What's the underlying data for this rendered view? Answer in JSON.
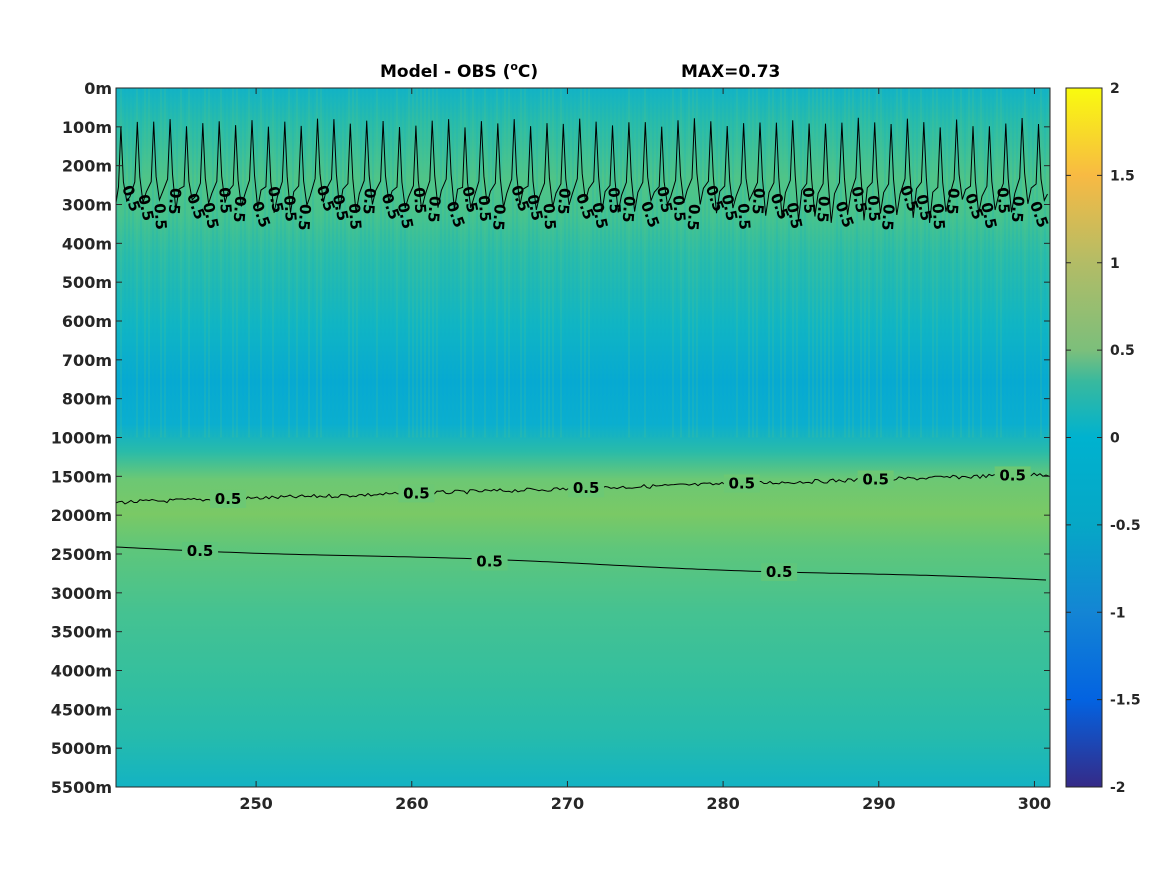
{
  "chart_data": {
    "type": "heatmap",
    "title": "Model - OBS (°C)",
    "title_parts": {
      "main": "Model - OBS (",
      "superscript": "o",
      "unit": "C)"
    },
    "max_label": "MAX=0.73",
    "x_ticks": [
      250,
      260,
      270,
      280,
      290,
      300
    ],
    "x_range": [
      241,
      301
    ],
    "depth_ticks": [
      "0m",
      "100m",
      "200m",
      "300m",
      "400m",
      "500m",
      "600m",
      "700m",
      "800m",
      "1000m",
      "1500m",
      "2000m",
      "2500m",
      "3000m",
      "3500m",
      "4000m",
      "4500m",
      "5000m",
      "5500m"
    ],
    "colorbar": {
      "range": [
        -2,
        2
      ],
      "ticks": [
        "2",
        "1.5",
        "1",
        "0.5",
        "0",
        "-0.5",
        "-1",
        "-1.5",
        "-2"
      ],
      "colormap": "parula"
    },
    "contour_level": 0.5,
    "contour_label": "0.5",
    "upper_contour_labels": [
      "0.5",
      "0.5",
      "0.5",
      "0.5",
      "0.5",
      "0.5",
      "0.5",
      "0.5",
      "0.5",
      "0.5",
      "0.5",
      "0.5",
      "0.5",
      "0.5",
      "0.5",
      "0.5",
      "0.5",
      "0.5",
      "0.5",
      "0.5",
      "0.5",
      "0.5",
      "0.5",
      "0.5",
      "0.5",
      "0.5",
      "0.5",
      "0.5",
      "0.5",
      "0.5",
      "0.5",
      "0.5",
      "0.5",
      "0.5",
      "0.5",
      "0.5",
      "0.5",
      "0.5",
      "0.5",
      "0.5",
      "0.5",
      "0.5",
      "0.5",
      "0.5",
      "0.5",
      "0.5",
      "0.5",
      "0.5",
      "0.5",
      "0.5",
      "0.5",
      "0.5",
      "0.5",
      "0.5",
      "0.5",
      "0.5",
      "0.5"
    ],
    "middle_contour_labels": [
      {
        "x": 248.2,
        "label": "0.5"
      },
      {
        "x": 260.3,
        "label": "0.5"
      },
      {
        "x": 271.2,
        "label": "0.5"
      },
      {
        "x": 281.2,
        "label": "0.5"
      },
      {
        "x": 289.8,
        "label": "0.5"
      },
      {
        "x": 298.6,
        "label": "0.5"
      }
    ],
    "lower_contour_labels": [
      {
        "x": 246.4,
        "label": "0.5"
      },
      {
        "x": 265.0,
        "label": "0.5"
      },
      {
        "x": 283.6,
        "label": "0.5"
      }
    ],
    "depth_profile_bands": [
      {
        "depth": "0m",
        "value": 0.1
      },
      {
        "depth": "100m",
        "value": 0.3
      },
      {
        "depth": "200m",
        "value": 0.45
      },
      {
        "depth": "300m",
        "value": 0.42
      },
      {
        "depth": "400m",
        "value": 0.25
      },
      {
        "depth": "500m",
        "value": 0.12
      },
      {
        "depth": "600m",
        "value": 0.05
      },
      {
        "depth": "700m",
        "value": 0.0
      },
      {
        "depth": "800m",
        "value": 0.0
      },
      {
        "depth": "1000m",
        "value": 0.08
      },
      {
        "depth": "1500m",
        "value": 0.5
      },
      {
        "depth": "2000m",
        "value": 0.62
      },
      {
        "depth": "2500m",
        "value": 0.5
      },
      {
        "depth": "3000m",
        "value": 0.4
      },
      {
        "depth": "3500m",
        "value": 0.35
      },
      {
        "depth": "4000m",
        "value": 0.3
      },
      {
        "depth": "4500m",
        "value": 0.25
      },
      {
        "depth": "5000m",
        "value": 0.2
      },
      {
        "depth": "5500m",
        "value": 0.12
      }
    ],
    "xlabel": "",
    "ylabel": ""
  }
}
